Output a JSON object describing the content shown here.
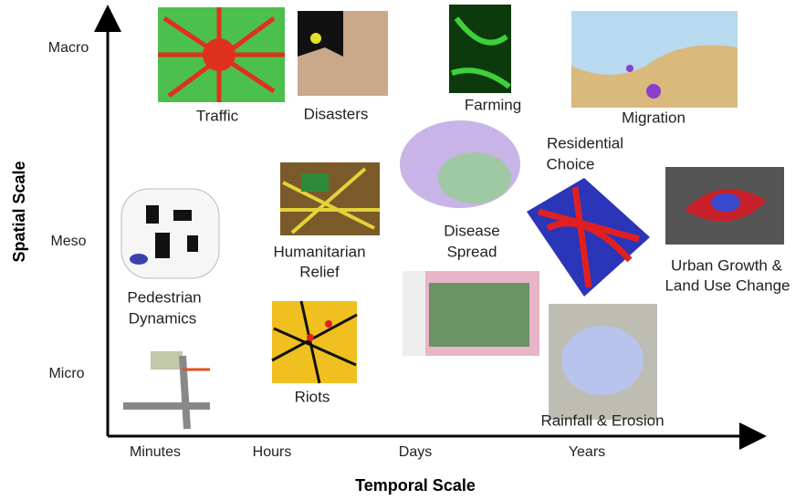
{
  "axes": {
    "x_title": "Temporal Scale",
    "y_title": "Spatial Scale",
    "x_ticks": [
      "Minutes",
      "Hours",
      "Days",
      "Years"
    ],
    "y_ticks": [
      "Macro",
      "Meso",
      "Micro"
    ]
  },
  "items": [
    {
      "lines": [
        "Traffic"
      ]
    },
    {
      "lines": [
        "Disasters"
      ]
    },
    {
      "lines": [
        "Farming"
      ]
    },
    {
      "lines": [
        "Migration"
      ]
    },
    {
      "lines": [
        "Residential",
        "Choice"
      ]
    },
    {
      "lines": [
        "Disease",
        "Spread"
      ]
    },
    {
      "lines": [
        "Humanitarian",
        "Relief"
      ]
    },
    {
      "lines": [
        "Urban Growth &",
        "Land Use Change"
      ]
    },
    {
      "lines": [
        "Pedestrian",
        "Dynamics"
      ]
    },
    {
      "lines": [
        "Riots"
      ]
    },
    {
      "lines": [
        "Rainfall & Erosion"
      ]
    }
  ]
}
